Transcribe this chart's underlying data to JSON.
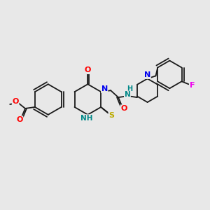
{
  "background_color": "#e8e8e8",
  "bond_color": "#1a1a1a",
  "atom_colors": {
    "O": "#ff0000",
    "N": "#0000ee",
    "S": "#bbaa00",
    "F": "#ee00ee",
    "NH": "#008888",
    "C": "#1a1a1a"
  },
  "figsize": [
    3.0,
    3.0
  ],
  "dpi": 100
}
